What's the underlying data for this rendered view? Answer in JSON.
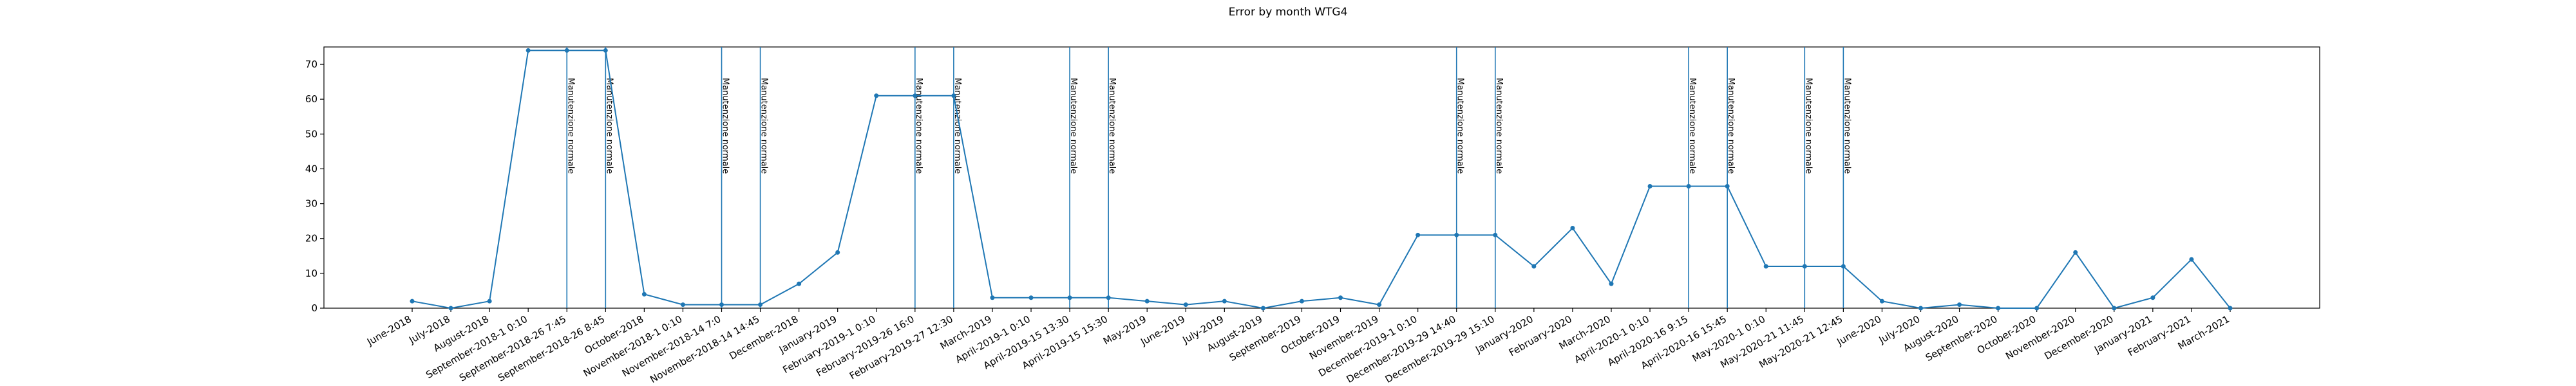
{
  "chart_data": {
    "type": "line",
    "title": "Error by month WTG4",
    "xlabel": "",
    "ylabel": "",
    "ylim": [
      0,
      75
    ],
    "yticks": [
      0,
      10,
      20,
      30,
      40,
      50,
      60,
      70
    ],
    "grid": false,
    "line_color": "#1f77b4",
    "categories": [
      "June-2018",
      "July-2018",
      "August-2018",
      "September-2018-1 0:10",
      "September-2018-26 7:45",
      "September-2018-26 8:45",
      "October-2018",
      "November-2018-1 0:10",
      "November-2018-14 7:0",
      "November-2018-14 14:45",
      "December-2018",
      "January-2019",
      "February-2019-1 0:10",
      "February-2019-26 16:0",
      "February-2019-27 12:30",
      "March-2019",
      "April-2019-1 0:10",
      "April-2019-15 13:30",
      "April-2019-15 15:30",
      "May-2019",
      "June-2019",
      "July-2019",
      "August-2019",
      "September-2019",
      "October-2019",
      "November-2019",
      "December-2019-1 0:10",
      "December-2019-29 14:40",
      "December-2019-29 15:10",
      "January-2020",
      "February-2020",
      "March-2020",
      "April-2020-1 0:10",
      "April-2020-16 9:15",
      "April-2020-16 15:45",
      "May-2020-1 0:10",
      "May-2020-21 11:45",
      "May-2020-21 12:45",
      "June-2020",
      "July-2020",
      "August-2020",
      "September-2020",
      "October-2020",
      "November-2020",
      "December-2020",
      "January-2021",
      "February-2021",
      "March-2021"
    ],
    "values": [
      2,
      0,
      2,
      74,
      74,
      74,
      4,
      1,
      1,
      1,
      7,
      16,
      61,
      61,
      61,
      3,
      3,
      3,
      3,
      2,
      1,
      2,
      0,
      2,
      3,
      1,
      21,
      21,
      21,
      12,
      23,
      7,
      35,
      35,
      35,
      12,
      12,
      12,
      2,
      0,
      1,
      0,
      0,
      16,
      0,
      3,
      14,
      0
    ],
    "annotations": [
      {
        "x_index": 4,
        "text": "Manutenzione normale"
      },
      {
        "x_index": 5,
        "text": "Manutenzione normale"
      },
      {
        "x_index": 8,
        "text": "Manutenzione normale"
      },
      {
        "x_index": 9,
        "text": "Manutenzione normale"
      },
      {
        "x_index": 13,
        "text": "Manutenzione normale"
      },
      {
        "x_index": 14,
        "text": "Manutenzione normale"
      },
      {
        "x_index": 17,
        "text": "Manutenzione normale"
      },
      {
        "x_index": 18,
        "text": "Manutenzione normale"
      },
      {
        "x_index": 27,
        "text": "Manutenzione normale"
      },
      {
        "x_index": 28,
        "text": "Manutenzione normale"
      },
      {
        "x_index": 33,
        "text": "Manutenzione normale"
      },
      {
        "x_index": 34,
        "text": "Manutenzione normale"
      },
      {
        "x_index": 36,
        "text": "Manutenzione normale"
      },
      {
        "x_index": 37,
        "text": "Manutenzione normale"
      }
    ]
  }
}
